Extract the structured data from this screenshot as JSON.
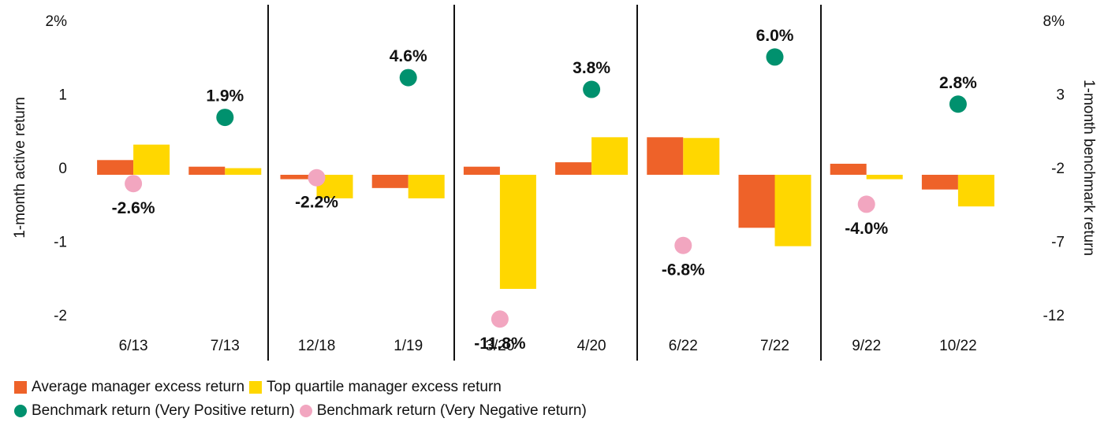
{
  "chart_data": {
    "type": "bar",
    "ylabel": "1-month active return",
    "y2label": "1-month benchmark return",
    "categories": [
      "6/13",
      "7/13",
      "12/18",
      "1/19",
      "3/20",
      "4/20",
      "6/22",
      "7/22",
      "9/22",
      "10/22"
    ],
    "series": [
      {
        "name": "Average manager excess return",
        "color": "#ee6229",
        "type": "bar",
        "values": [
          0.2,
          0.11,
          -0.06,
          -0.18,
          0.11,
          0.17,
          0.51,
          -0.72,
          0.15,
          -0.2
        ]
      },
      {
        "name": "Top quartile manager excess return",
        "color": "#ffd700",
        "type": "bar",
        "values": [
          0.41,
          0.09,
          -0.32,
          -0.32,
          -1.55,
          0.51,
          0.5,
          -0.97,
          -0.06,
          -0.43
        ]
      },
      {
        "name": "Benchmark return (Very Positive return)",
        "color": "#00916e",
        "type": "scatter",
        "axis": "y2",
        "values": [
          null,
          1.9,
          null,
          4.6,
          null,
          3.8,
          null,
          6.0,
          null,
          2.8
        ],
        "value_labels": [
          null,
          "1.9%",
          null,
          "4.6%",
          null,
          "3.8%",
          null,
          "6.0%",
          null,
          "2.8%"
        ]
      },
      {
        "name": "Benchmark return (Very Negative return)",
        "color": "#f2a6c0",
        "type": "scatter",
        "axis": "y2",
        "values": [
          -2.6,
          null,
          -2.2,
          null,
          -11.8,
          null,
          -6.8,
          null,
          -4.0,
          null
        ],
        "value_labels": [
          "-2.6%",
          null,
          "-2.2%",
          null,
          "-11.8%",
          null,
          "-6.8%",
          null,
          "-4.0%",
          null
        ]
      }
    ],
    "ylim": [
      -2,
      2
    ],
    "yticks": [
      {
        "value": 2,
        "label": "2%"
      },
      1,
      0,
      -1,
      -2
    ],
    "y2lim": [
      -12,
      8
    ],
    "y2ticks": [
      {
        "value": 8,
        "label": "8%"
      },
      3,
      -2,
      -7,
      -12
    ]
  }
}
